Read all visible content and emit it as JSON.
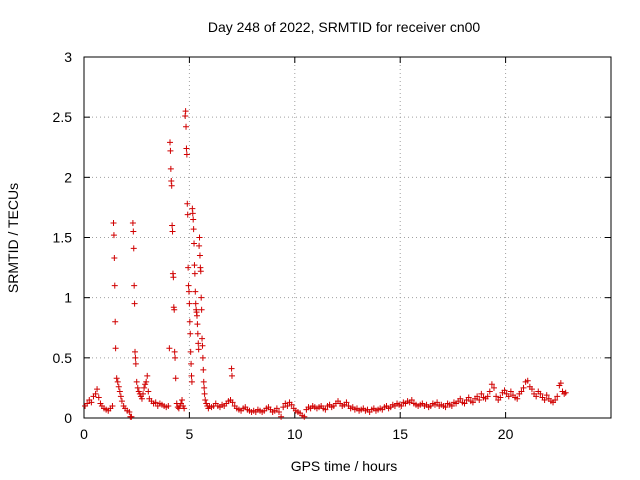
{
  "chart_data": {
    "type": "scatter",
    "title": "Day 248 of 2022, SRMTID for receiver cn00",
    "xlabel": "GPS time / hours",
    "ylabel": "SRMTID / TECUs",
    "xlim": [
      0,
      25
    ],
    "ylim": [
      0,
      3
    ],
    "xticks": [
      0,
      5,
      10,
      15,
      20
    ],
    "xtick_labels": [
      "0",
      "5",
      "10",
      "15",
      "20"
    ],
    "yticks": [
      0,
      0.5,
      1,
      1.5,
      2,
      2.5,
      3
    ],
    "ytick_labels": [
      "0",
      "0.5",
      "1",
      "1.5",
      "2",
      "2.5",
      "3"
    ],
    "grid": true,
    "marker": "+",
    "marker_color": "#d00000",
    "series": [
      {
        "name": "SRMTID",
        "points": [
          [
            0.05,
            0.1
          ],
          [
            0.15,
            0.12
          ],
          [
            0.25,
            0.15
          ],
          [
            0.35,
            0.13
          ],
          [
            0.45,
            0.18
          ],
          [
            0.55,
            0.2
          ],
          [
            0.62,
            0.24
          ],
          [
            0.7,
            0.17
          ],
          [
            0.78,
            0.12
          ],
          [
            0.85,
            0.1
          ],
          [
            0.95,
            0.08
          ],
          [
            1.05,
            0.07
          ],
          [
            1.15,
            0.06
          ],
          [
            1.25,
            0.08
          ],
          [
            1.35,
            0.1
          ],
          [
            1.4,
            1.62
          ],
          [
            1.42,
            1.52
          ],
          [
            1.44,
            1.33
          ],
          [
            1.46,
            1.1
          ],
          [
            1.48,
            0.8
          ],
          [
            1.5,
            0.58
          ],
          [
            1.55,
            0.33
          ],
          [
            1.6,
            0.3
          ],
          [
            1.65,
            0.26
          ],
          [
            1.7,
            0.22
          ],
          [
            1.75,
            0.18
          ],
          [
            1.8,
            0.14
          ],
          [
            1.88,
            0.1
          ],
          [
            1.95,
            0.08
          ],
          [
            2.05,
            0.06
          ],
          [
            2.15,
            0.05
          ],
          [
            2.2,
            0.01
          ],
          [
            2.25,
            0.01
          ],
          [
            2.32,
            1.62
          ],
          [
            2.34,
            1.55
          ],
          [
            2.36,
            1.41
          ],
          [
            2.38,
            1.1
          ],
          [
            2.4,
            0.95
          ],
          [
            2.42,
            0.55
          ],
          [
            2.44,
            0.5
          ],
          [
            2.46,
            0.45
          ],
          [
            2.5,
            0.3
          ],
          [
            2.55,
            0.25
          ],
          [
            2.6,
            0.22
          ],
          [
            2.65,
            0.2
          ],
          [
            2.7,
            0.18
          ],
          [
            2.75,
            0.16
          ],
          [
            2.8,
            0.2
          ],
          [
            2.85,
            0.25
          ],
          [
            2.9,
            0.28
          ],
          [
            2.95,
            0.3
          ],
          [
            3.0,
            0.35
          ],
          [
            3.05,
            0.22
          ],
          [
            3.1,
            0.16
          ],
          [
            3.2,
            0.14
          ],
          [
            3.3,
            0.12
          ],
          [
            3.4,
            0.13
          ],
          [
            3.5,
            0.1
          ],
          [
            3.6,
            0.12
          ],
          [
            3.7,
            0.11
          ],
          [
            3.8,
            0.1
          ],
          [
            3.9,
            0.09
          ],
          [
            4.0,
            0.1
          ],
          [
            4.05,
            0.58
          ],
          [
            4.08,
            2.29
          ],
          [
            4.1,
            2.22
          ],
          [
            4.12,
            2.07
          ],
          [
            4.14,
            1.97
          ],
          [
            4.16,
            1.93
          ],
          [
            4.18,
            1.6
          ],
          [
            4.2,
            1.55
          ],
          [
            4.22,
            1.2
          ],
          [
            4.24,
            1.17
          ],
          [
            4.26,
            0.92
          ],
          [
            4.28,
            0.9
          ],
          [
            4.3,
            0.55
          ],
          [
            4.32,
            0.5
          ],
          [
            4.35,
            0.33
          ],
          [
            4.4,
            0.12
          ],
          [
            4.45,
            0.09
          ],
          [
            4.5,
            0.08
          ],
          [
            4.55,
            0.1
          ],
          [
            4.6,
            0.12
          ],
          [
            4.65,
            0.15
          ],
          [
            4.7,
            0.1
          ],
          [
            4.75,
            0.08
          ],
          [
            4.8,
            2.51
          ],
          [
            4.82,
            2.55
          ],
          [
            4.84,
            2.42
          ],
          [
            4.86,
            2.24
          ],
          [
            4.88,
            2.19
          ],
          [
            4.9,
            1.78
          ],
          [
            4.92,
            1.69
          ],
          [
            4.94,
            1.25
          ],
          [
            4.96,
            1.1
          ],
          [
            4.98,
            1.05
          ],
          [
            5.0,
            0.95
          ],
          [
            5.02,
            0.8
          ],
          [
            5.04,
            0.7
          ],
          [
            5.06,
            0.55
          ],
          [
            5.08,
            0.45
          ],
          [
            5.1,
            0.35
          ],
          [
            5.12,
            0.3
          ],
          [
            5.14,
            1.74
          ],
          [
            5.16,
            1.7
          ],
          [
            5.18,
            1.65
          ],
          [
            5.2,
            1.57
          ],
          [
            5.22,
            1.45
          ],
          [
            5.24,
            1.27
          ],
          [
            5.26,
            1.2
          ],
          [
            5.28,
            1.05
          ],
          [
            5.3,
            0.95
          ],
          [
            5.32,
            0.9
          ],
          [
            5.34,
            0.88
          ],
          [
            5.36,
            0.85
          ],
          [
            5.38,
            0.78
          ],
          [
            5.4,
            0.7
          ],
          [
            5.42,
            0.62
          ],
          [
            5.44,
            0.57
          ],
          [
            5.46,
            1.43
          ],
          [
            5.48,
            1.5
          ],
          [
            5.5,
            1.35
          ],
          [
            5.52,
            1.25
          ],
          [
            5.54,
            1.22
          ],
          [
            5.56,
            1.0
          ],
          [
            5.58,
            0.9
          ],
          [
            5.6,
            0.66
          ],
          [
            5.62,
            0.6
          ],
          [
            5.64,
            0.5
          ],
          [
            5.66,
            0.4
          ],
          [
            5.68,
            0.3
          ],
          [
            5.7,
            0.25
          ],
          [
            5.72,
            0.2
          ],
          [
            5.75,
            0.15
          ],
          [
            5.8,
            0.12
          ],
          [
            5.85,
            0.1
          ],
          [
            5.9,
            0.08
          ],
          [
            5.95,
            0.1
          ],
          [
            6.05,
            0.09
          ],
          [
            6.15,
            0.1
          ],
          [
            6.25,
            0.12
          ],
          [
            6.35,
            0.1
          ],
          [
            6.45,
            0.09
          ],
          [
            6.55,
            0.11
          ],
          [
            6.65,
            0.1
          ],
          [
            6.75,
            0.12
          ],
          [
            6.85,
            0.14
          ],
          [
            6.95,
            0.15
          ],
          [
            7.0,
            0.41
          ],
          [
            7.02,
            0.35
          ],
          [
            7.05,
            0.13
          ],
          [
            7.15,
            0.1
          ],
          [
            7.25,
            0.08
          ],
          [
            7.35,
            0.07
          ],
          [
            7.45,
            0.06
          ],
          [
            7.55,
            0.08
          ],
          [
            7.65,
            0.09
          ],
          [
            7.75,
            0.07
          ],
          [
            7.85,
            0.06
          ],
          [
            7.95,
            0.05
          ],
          [
            8.05,
            0.06
          ],
          [
            8.15,
            0.05
          ],
          [
            8.25,
            0.07
          ],
          [
            8.35,
            0.06
          ],
          [
            8.45,
            0.05
          ],
          [
            8.55,
            0.06
          ],
          [
            8.65,
            0.08
          ],
          [
            8.75,
            0.09
          ],
          [
            8.85,
            0.07
          ],
          [
            8.95,
            0.05
          ],
          [
            9.05,
            0.06
          ],
          [
            9.15,
            0.08
          ],
          [
            9.25,
            0.05
          ],
          [
            9.35,
            0.01
          ],
          [
            9.45,
            0.09
          ],
          [
            9.55,
            0.12
          ],
          [
            9.65,
            0.1
          ],
          [
            9.75,
            0.13
          ],
          [
            9.85,
            0.11
          ],
          [
            9.95,
            0.08
          ],
          [
            10.05,
            0.06
          ],
          [
            10.15,
            0.05
          ],
          [
            10.25,
            0.04
          ],
          [
            10.35,
            0.02
          ],
          [
            10.45,
            0.01
          ],
          [
            10.55,
            0.07
          ],
          [
            10.65,
            0.09
          ],
          [
            10.75,
            0.08
          ],
          [
            10.85,
            0.1
          ],
          [
            10.95,
            0.09
          ],
          [
            11.05,
            0.08
          ],
          [
            11.15,
            0.09
          ],
          [
            11.25,
            0.1
          ],
          [
            11.35,
            0.08
          ],
          [
            11.45,
            0.07
          ],
          [
            11.55,
            0.1
          ],
          [
            11.65,
            0.11
          ],
          [
            11.75,
            0.09
          ],
          [
            11.85,
            0.1
          ],
          [
            11.95,
            0.12
          ],
          [
            12.05,
            0.14
          ],
          [
            12.15,
            0.12
          ],
          [
            12.25,
            0.1
          ],
          [
            12.35,
            0.11
          ],
          [
            12.45,
            0.13
          ],
          [
            12.55,
            0.1
          ],
          [
            12.65,
            0.08
          ],
          [
            12.75,
            0.09
          ],
          [
            12.85,
            0.07
          ],
          [
            12.95,
            0.08
          ],
          [
            13.05,
            0.06
          ],
          [
            13.15,
            0.07
          ],
          [
            13.25,
            0.08
          ],
          [
            13.35,
            0.06
          ],
          [
            13.45,
            0.07
          ],
          [
            13.55,
            0.05
          ],
          [
            13.65,
            0.07
          ],
          [
            13.75,
            0.08
          ],
          [
            13.85,
            0.06
          ],
          [
            13.95,
            0.07
          ],
          [
            14.05,
            0.08
          ],
          [
            14.15,
            0.07
          ],
          [
            14.25,
            0.09
          ],
          [
            14.35,
            0.1
          ],
          [
            14.45,
            0.08
          ],
          [
            14.55,
            0.09
          ],
          [
            14.65,
            0.11
          ],
          [
            14.75,
            0.1
          ],
          [
            14.85,
            0.12
          ],
          [
            14.95,
            0.11
          ],
          [
            15.05,
            0.1
          ],
          [
            15.15,
            0.13
          ],
          [
            15.25,
            0.12
          ],
          [
            15.35,
            0.14
          ],
          [
            15.45,
            0.13
          ],
          [
            15.55,
            0.15
          ],
          [
            15.65,
            0.12
          ],
          [
            15.75,
            0.11
          ],
          [
            15.85,
            0.1
          ],
          [
            15.95,
            0.11
          ],
          [
            16.05,
            0.12
          ],
          [
            16.15,
            0.1
          ],
          [
            16.25,
            0.11
          ],
          [
            16.35,
            0.09
          ],
          [
            16.45,
            0.1
          ],
          [
            16.55,
            0.12
          ],
          [
            16.65,
            0.11
          ],
          [
            16.75,
            0.13
          ],
          [
            16.85,
            0.1
          ],
          [
            16.95,
            0.11
          ],
          [
            17.05,
            0.1
          ],
          [
            17.15,
            0.09
          ],
          [
            17.25,
            0.12
          ],
          [
            17.35,
            0.11
          ],
          [
            17.45,
            0.1
          ],
          [
            17.55,
            0.13
          ],
          [
            17.65,
            0.12
          ],
          [
            17.75,
            0.14
          ],
          [
            17.85,
            0.16
          ],
          [
            17.95,
            0.13
          ],
          [
            18.05,
            0.12
          ],
          [
            18.15,
            0.15
          ],
          [
            18.25,
            0.17
          ],
          [
            18.35,
            0.14
          ],
          [
            18.45,
            0.13
          ],
          [
            18.55,
            0.16
          ],
          [
            18.65,
            0.18
          ],
          [
            18.75,
            0.15
          ],
          [
            18.85,
            0.2
          ],
          [
            18.95,
            0.17
          ],
          [
            19.05,
            0.16
          ],
          [
            19.15,
            0.18
          ],
          [
            19.25,
            0.22
          ],
          [
            19.35,
            0.28
          ],
          [
            19.45,
            0.25
          ],
          [
            19.55,
            0.18
          ],
          [
            19.65,
            0.15
          ],
          [
            19.75,
            0.17
          ],
          [
            19.85,
            0.21
          ],
          [
            19.95,
            0.23
          ],
          [
            20.05,
            0.2
          ],
          [
            20.15,
            0.18
          ],
          [
            20.25,
            0.22
          ],
          [
            20.35,
            0.19
          ],
          [
            20.45,
            0.17
          ],
          [
            20.55,
            0.16
          ],
          [
            20.65,
            0.2
          ],
          [
            20.75,
            0.22
          ],
          [
            20.85,
            0.25
          ],
          [
            20.95,
            0.3
          ],
          [
            21.05,
            0.31
          ],
          [
            21.15,
            0.26
          ],
          [
            21.25,
            0.24
          ],
          [
            21.35,
            0.2
          ],
          [
            21.45,
            0.18
          ],
          [
            21.55,
            0.22
          ],
          [
            21.65,
            0.2
          ],
          [
            21.75,
            0.17
          ],
          [
            21.85,
            0.15
          ],
          [
            21.95,
            0.19
          ],
          [
            22.05,
            0.16
          ],
          [
            22.15,
            0.14
          ],
          [
            22.25,
            0.13
          ],
          [
            22.35,
            0.15
          ],
          [
            22.45,
            0.18
          ],
          [
            22.55,
            0.27
          ],
          [
            22.62,
            0.29
          ],
          [
            22.7,
            0.22
          ],
          [
            22.78,
            0.2
          ],
          [
            22.85,
            0.21
          ]
        ]
      }
    ]
  }
}
